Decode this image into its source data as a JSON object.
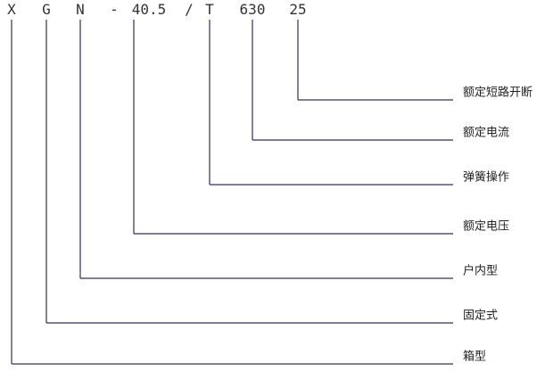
{
  "parts": [
    {
      "text": "X",
      "meaning": "箱型"
    },
    {
      "text": "G",
      "meaning": "固定式"
    },
    {
      "text": "N",
      "meaning": "户内型"
    },
    {
      "text": "-"
    },
    {
      "text": "40.5",
      "meaning": "额定电压"
    },
    {
      "text": "/"
    },
    {
      "text": "T",
      "meaning": "弹簧操作"
    },
    {
      "text": "630",
      "meaning": "额定电流"
    },
    {
      "text": "25",
      "meaning": "额定短路开断"
    }
  ]
}
